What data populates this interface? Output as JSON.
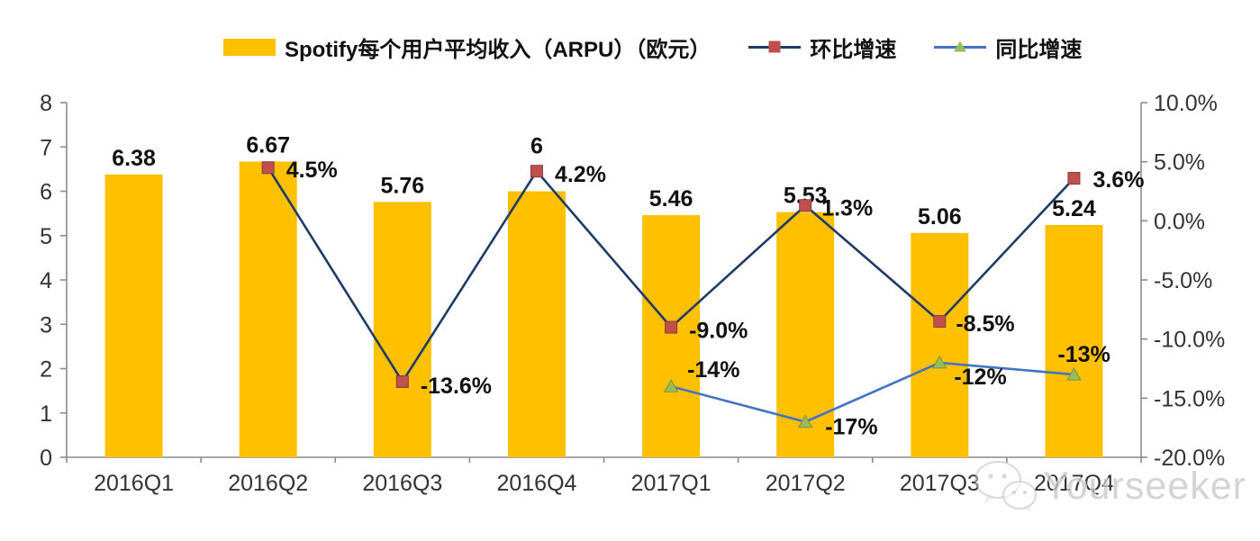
{
  "chart_data": {
    "type": "bar",
    "subtype": "bar-line-combo",
    "categories": [
      "2016Q1",
      "2016Q2",
      "2016Q3",
      "2016Q4",
      "2017Q1",
      "2017Q2",
      "2017Q3",
      "2017Q4"
    ],
    "series": [
      {
        "name": "Spotify每个用户平均收入（ARPU）（欧元）",
        "type": "bar",
        "axis": "left",
        "color": "#FFC000",
        "values": [
          6.38,
          6.67,
          5.76,
          6,
          5.46,
          5.53,
          5.06,
          5.24
        ],
        "labels": [
          "6.38",
          "6.67",
          "5.76",
          "6",
          "5.46",
          "5.53",
          "5.06",
          "5.24"
        ],
        "label_dy": [
          0,
          0,
          0,
          -32,
          0,
          0,
          0,
          0
        ]
      },
      {
        "name": "环比增速",
        "type": "line",
        "axis": "right",
        "line_color": "#1F3B66",
        "marker": "square",
        "marker_color": "#C0504D",
        "values": [
          null,
          4.5,
          -13.6,
          4.2,
          -9.0,
          1.3,
          -8.5,
          3.6
        ],
        "labels": [
          null,
          "4.5%",
          "-13.6%",
          "4.2%",
          "-9.0%",
          "1.3%",
          "-8.5%",
          "3.6%"
        ],
        "label_dx": [
          null,
          20,
          20,
          20,
          20,
          18,
          18,
          21
        ],
        "label_dy": [
          null,
          11,
          13,
          12,
          12,
          11,
          11,
          10
        ]
      },
      {
        "name": "同比增速",
        "type": "line",
        "axis": "right",
        "line_color": "#4472C4",
        "marker": "triangle",
        "marker_color": "#9BBB59",
        "values": [
          null,
          null,
          null,
          null,
          -14,
          -17,
          -12,
          -13
        ],
        "labels": [
          null,
          null,
          null,
          null,
          "-14%",
          "-17%",
          "-12%",
          "-13%"
        ],
        "label_dx": [
          null,
          null,
          null,
          null,
          18,
          22,
          16,
          -18
        ],
        "label_dy": [
          null,
          null,
          null,
          null,
          -10,
          14,
          24,
          -14
        ]
      }
    ],
    "left_axis": {
      "min": 0,
      "max": 8,
      "tick_values": [
        0,
        1,
        2,
        3,
        4,
        5,
        6,
        7,
        8
      ],
      "tick_labels": [
        "0",
        "1",
        "2",
        "3",
        "4",
        "5",
        "6",
        "7",
        "8"
      ]
    },
    "right_axis": {
      "min": -20,
      "max": 10,
      "tick_values": [
        10,
        5,
        0,
        -5,
        -10,
        -15,
        -20
      ],
      "tick_labels": [
        "10.0%",
        "5.0%",
        "0.0%",
        "-5.0%",
        "-10.0%",
        "-15.0%",
        "-20.0%"
      ]
    },
    "grid": false,
    "legend_position": "top",
    "title": "Spotify每个用户平均收入（ARPU）（欧元）"
  },
  "legend": {
    "items": [
      {
        "label": "Spotify每个用户平均收入（ARPU）（欧元）",
        "swatch": "bar",
        "color": "#FFC000"
      },
      {
        "label": "环比增速",
        "swatch": "line-square",
        "line_color": "#1F3B66",
        "marker_color": "#C0504D"
      },
      {
        "label": "同比增速",
        "swatch": "line-triangle",
        "line_color": "#4472C4",
        "marker_color": "#9BBB59"
      }
    ]
  },
  "watermark": {
    "text": "Yourseeker"
  },
  "colors": {
    "bar": "#FFC000",
    "qoq_line": "#1F3B66",
    "qoq_marker": "#C0504D",
    "yoy_line": "#4472C4",
    "yoy_marker": "#9BBB59",
    "axis": "#8C8C8C",
    "axis_text": "#333333",
    "data_label": "#111111"
  }
}
